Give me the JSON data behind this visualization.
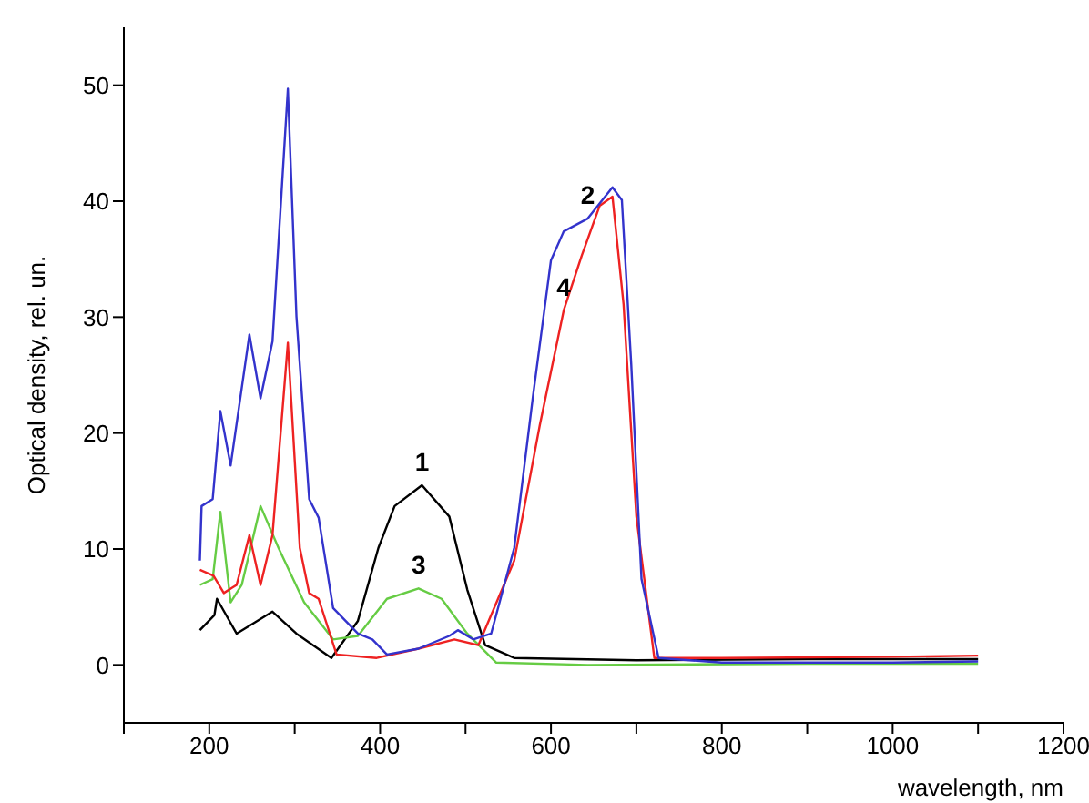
{
  "chart_data": {
    "type": "line",
    "xlabel": "wavelength, nm",
    "ylabel": "Optical density, rel. un.",
    "xlim": [
      100,
      1200
    ],
    "ylim": [
      -5,
      55
    ],
    "xticks": [
      {
        "value": 100,
        "label": null
      },
      200,
      {
        "value": 300,
        "label": null
      },
      400,
      {
        "value": 500,
        "label": null
      },
      600,
      {
        "value": 700,
        "label": null
      },
      800,
      {
        "value": 900,
        "label": null
      },
      1000,
      {
        "value": 1100,
        "label": null
      },
      1200
    ],
    "yticks": [
      0,
      10,
      20,
      30,
      40,
      50
    ],
    "grid": false,
    "marker": "none",
    "line_style": "solid",
    "series": [
      {
        "color": "#000000",
        "x": [
          189,
          206,
          209,
          232,
          274,
          302,
          343,
          374,
          398,
          417,
          449,
          481,
          502,
          523,
          557,
          700,
          900,
          1100
        ],
        "values": [
          3.0,
          4.3,
          5.7,
          2.7,
          4.6,
          2.7,
          0.6,
          3.8,
          10.1,
          13.7,
          15.5,
          12.8,
          6.5,
          1.7,
          0.6,
          0.4,
          0.5,
          0.5
        ]
      },
      {
        "color": "#66cc44",
        "x": [
          189,
          204,
          213,
          225,
          238,
          260,
          281,
          311,
          345,
          374,
          408,
          445,
          472,
          502,
          536,
          643,
          900,
          1100
        ],
        "values": [
          6.9,
          7.4,
          13.2,
          5.4,
          6.9,
          13.7,
          10.1,
          5.4,
          2.2,
          2.5,
          5.7,
          6.6,
          5.7,
          2.7,
          0.2,
          0.0,
          0.1,
          0.1
        ]
      },
      {
        "color": "#ee2222",
        "x": [
          189,
          205,
          217,
          232,
          247,
          260,
          274,
          292,
          306,
          317,
          328,
          349,
          396,
          445,
          487,
          515,
          557,
          587,
          615,
          636,
          657,
          672,
          685,
          700,
          721,
          800,
          1000,
          1100
        ],
        "values": [
          8.2,
          7.7,
          6.2,
          6.9,
          11.2,
          6.9,
          11.2,
          27.8,
          10.1,
          6.2,
          5.7,
          0.9,
          0.6,
          1.4,
          2.2,
          1.7,
          9.0,
          20.7,
          30.6,
          35.3,
          39.6,
          40.4,
          31.1,
          12.8,
          0.6,
          0.6,
          0.7,
          0.8
        ]
      },
      {
        "color": "#3333cc",
        "x": [
          189,
          191,
          204,
          213,
          225,
          247,
          260,
          274,
          292,
          302,
          317,
          328,
          345,
          374,
          391,
          408,
          445,
          481,
          491,
          509,
          530,
          557,
          579,
          600,
          615,
          643,
          672,
          683,
          694,
          706,
          726,
          800,
          1000,
          1100
        ],
        "values": [
          9.0,
          13.7,
          14.3,
          21.9,
          17.2,
          28.5,
          23.0,
          27.9,
          49.7,
          30.1,
          14.3,
          12.7,
          4.9,
          2.7,
          2.2,
          0.9,
          1.4,
          2.5,
          3.0,
          2.2,
          2.7,
          10.1,
          23.2,
          34.9,
          37.4,
          38.5,
          41.2,
          40.1,
          25.9,
          7.4,
          0.6,
          0.2,
          0.2,
          0.3
        ]
      }
    ],
    "annotations": [
      {
        "text": "1",
        "x": 449,
        "y": 15.5
      },
      {
        "text": "2",
        "x": 643,
        "y": 38.5
      },
      {
        "text": "3",
        "x": 445,
        "y": 6.6
      },
      {
        "text": "4",
        "x": 615,
        "y": 30.6
      }
    ]
  }
}
